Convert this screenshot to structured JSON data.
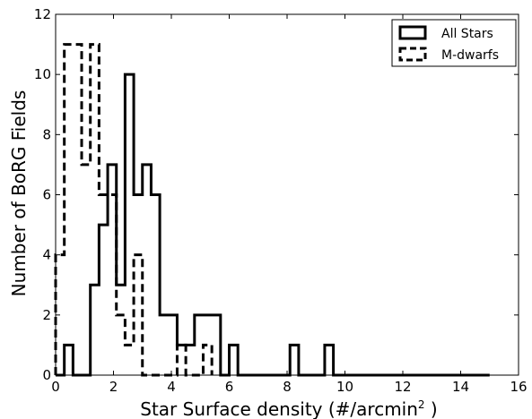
{
  "chart_data": {
    "type": "histogram-step",
    "xlabel": "Star Surface density (#/arcmin",
    "xlabel_sup": "2",
    "xlabel_close": " )",
    "ylabel": "Number of BoRG Fields",
    "xlim": [
      0,
      16
    ],
    "ylim": [
      0,
      12
    ],
    "xticks": [
      0,
      2,
      4,
      6,
      8,
      10,
      12,
      14,
      16
    ],
    "yticks": [
      0,
      2,
      4,
      6,
      8,
      10,
      12
    ],
    "grid": false,
    "legend_position": "top-right",
    "series": [
      {
        "name": "All Stars",
        "style": "solid",
        "color": "#000000",
        "bin_edges": [
          0,
          0.3,
          0.6,
          0.9,
          1.2,
          1.5,
          1.8,
          2.1,
          2.4,
          2.7,
          3.0,
          3.3,
          3.6,
          3.9,
          4.2,
          4.5,
          4.8,
          5.1,
          5.4,
          5.7,
          6.0,
          6.3,
          6.6,
          6.9,
          7.2,
          7.5,
          7.8,
          8.1,
          8.4,
          8.7,
          9.0,
          9.3,
          9.6,
          9.9,
          10.2,
          10.5,
          10.8,
          11.1,
          11.4,
          11.7,
          12.0,
          12.3,
          12.6,
          12.9,
          13.2,
          13.5,
          13.8,
          14.1,
          14.4,
          14.7,
          15.0
        ],
        "counts": [
          0,
          1,
          0,
          0,
          3,
          5,
          7,
          3,
          10,
          6,
          7,
          6,
          2,
          2,
          1,
          1,
          2,
          2,
          2,
          0,
          1,
          0,
          0,
          0,
          0,
          0,
          0,
          1,
          0,
          0,
          0,
          1,
          0,
          0,
          0,
          0,
          0,
          0,
          0,
          0,
          0,
          0,
          0,
          0,
          0,
          0,
          0,
          0,
          0,
          0
        ]
      },
      {
        "name": "M-dwarfs",
        "style": "dashed",
        "color": "#000000",
        "bin_edges": [
          0,
          0.3,
          0.6,
          0.9,
          1.2,
          1.5,
          1.8,
          2.1,
          2.4,
          2.7,
          3.0,
          3.3,
          3.6,
          3.9,
          4.2,
          4.5,
          4.8,
          5.1,
          5.4
        ],
        "counts": [
          4,
          11,
          11,
          7,
          11,
          6,
          6,
          2,
          1,
          4,
          0,
          0,
          0,
          0,
          1,
          0,
          0,
          1
        ]
      }
    ]
  }
}
